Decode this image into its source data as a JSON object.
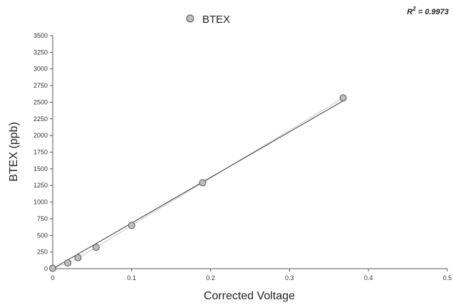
{
  "chart_data": {
    "type": "scatter",
    "xlabel": "Corrected Voltage",
    "ylabel": "BTEX (ppb)",
    "xlim": [
      0,
      0.5
    ],
    "ylim": [
      0,
      3500
    ],
    "x_ticks": [
      "0",
      "0.1",
      "0.2",
      "0.3",
      "0.4",
      "0.5"
    ],
    "y_ticks": [
      "0",
      "250",
      "500",
      "750",
      "1000",
      "1250",
      "1500",
      "1750",
      "2000",
      "2250",
      "2500",
      "2750",
      "3000",
      "3250",
      "3500"
    ],
    "legend_position": "top-center",
    "grid": false,
    "series": [
      {
        "name": "BTEX",
        "marker_color": "#bdbdbd",
        "marker_edge": "#555555",
        "x": [
          0.0,
          0.019,
          0.032,
          0.055,
          0.1,
          0.19,
          0.368
        ],
        "y": [
          5,
          85,
          165,
          320,
          650,
          1290,
          2565
        ]
      }
    ],
    "trendline": {
      "type": "linear",
      "x": [
        0,
        0.368
      ],
      "y": [
        0,
        2520
      ],
      "color": "#333333",
      "r2_label": "R",
      "r2_exp": "2",
      "r2_value": " = 0.9973"
    }
  }
}
